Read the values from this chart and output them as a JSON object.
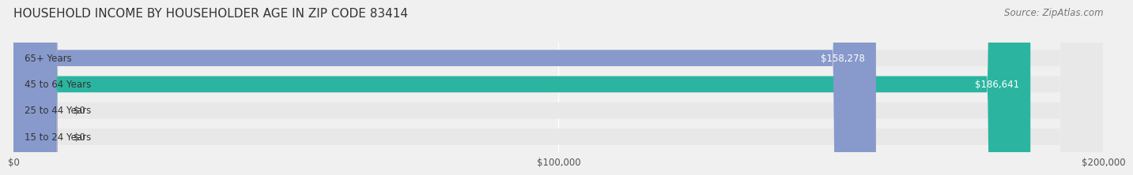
{
  "title": "HOUSEHOLD INCOME BY HOUSEHOLDER AGE IN ZIP CODE 83414",
  "source": "Source: ZipAtlas.com",
  "categories": [
    "15 to 24 Years",
    "25 to 44 Years",
    "45 to 64 Years",
    "65+ Years"
  ],
  "values": [
    0,
    0,
    186641,
    158278
  ],
  "bar_colors": [
    "#7eb3d8",
    "#b8a0c8",
    "#2bb5a0",
    "#8899cc"
  ],
  "value_labels": [
    "$0",
    "$0",
    "$186,641",
    "$158,278"
  ],
  "xlim": [
    0,
    200000
  ],
  "xticks": [
    0,
    100000,
    200000
  ],
  "xtick_labels": [
    "$0",
    "$100,000",
    "$200,000"
  ],
  "bg_color": "#f0f0f0",
  "bar_bg_color": "#e8e8e8",
  "title_fontsize": 11,
  "source_fontsize": 8.5,
  "label_fontsize": 8.5,
  "tick_fontsize": 8.5
}
